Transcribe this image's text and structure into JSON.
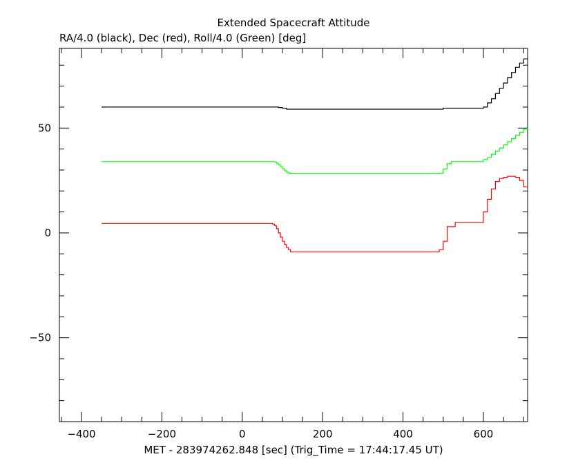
{
  "chart_data": {
    "type": "line",
    "title": "Extended Spacecraft Attitude",
    "subtitle": "RA/4.0 (black), Dec (red), Roll/4.0 (Green) [deg]",
    "xlabel": "MET - 283974262.848 [sec] (Trig_Time = 17:44:17.45 UT)",
    "ylabel": "",
    "xlim": [
      -455,
      710
    ],
    "ylim": [
      -90,
      88
    ],
    "xticks": [
      -400,
      -200,
      0,
      200,
      400,
      600
    ],
    "yticks": [
      -50,
      0,
      50
    ],
    "grid": false,
    "colors": {
      "ra": "#000000",
      "dec": "#ff0000",
      "roll": "#00ff00",
      "axis": "#000000"
    },
    "series": [
      {
        "key": "ra",
        "color": "#000000",
        "step": true,
        "x": [
          -350,
          80,
          90,
          100,
          110,
          480,
          500,
          600,
          610,
          620,
          630,
          640,
          650,
          660,
          670,
          680,
          690,
          700,
          710
        ],
        "y": [
          60,
          60,
          59.8,
          59.5,
          59,
          59,
          59.5,
          60,
          62,
          64,
          66.5,
          69,
          71.5,
          74,
          76.5,
          79,
          81,
          83,
          83
        ]
      },
      {
        "key": "roll",
        "color": "#00ff00",
        "step": true,
        "x": [
          -350,
          75,
          80,
          85,
          90,
          95,
          100,
          105,
          110,
          115,
          120,
          480,
          490,
          500,
          510,
          520,
          530,
          600,
          610,
          620,
          630,
          640,
          650,
          660,
          670,
          680,
          690,
          700,
          710
        ],
        "y": [
          34,
          34,
          33.8,
          33.2,
          32.5,
          31.6,
          30.6,
          29.7,
          29,
          28.5,
          28.2,
          28.2,
          28.5,
          30.5,
          33,
          34,
          34,
          35,
          36,
          37.5,
          39,
          40.5,
          42,
          43.5,
          45,
          46.5,
          48,
          49.5,
          50
        ]
      },
      {
        "key": "dec",
        "color": "#ff0000",
        "step": true,
        "x": [
          -350,
          70,
          75,
          80,
          85,
          90,
          95,
          100,
          105,
          110,
          115,
          120,
          480,
          490,
          500,
          510,
          530,
          590,
          600,
          610,
          620,
          630,
          640,
          650,
          660,
          670,
          680,
          690,
          700,
          710
        ],
        "y": [
          4.5,
          4.5,
          4.2,
          3.5,
          2,
          0,
          -2,
          -4,
          -5.5,
          -7,
          -8,
          -9,
          -9,
          -8,
          -4,
          3,
          5,
          5,
          10,
          16,
          21,
          24.5,
          26,
          26.5,
          27,
          27,
          26.5,
          25,
          22,
          22
        ]
      }
    ]
  }
}
